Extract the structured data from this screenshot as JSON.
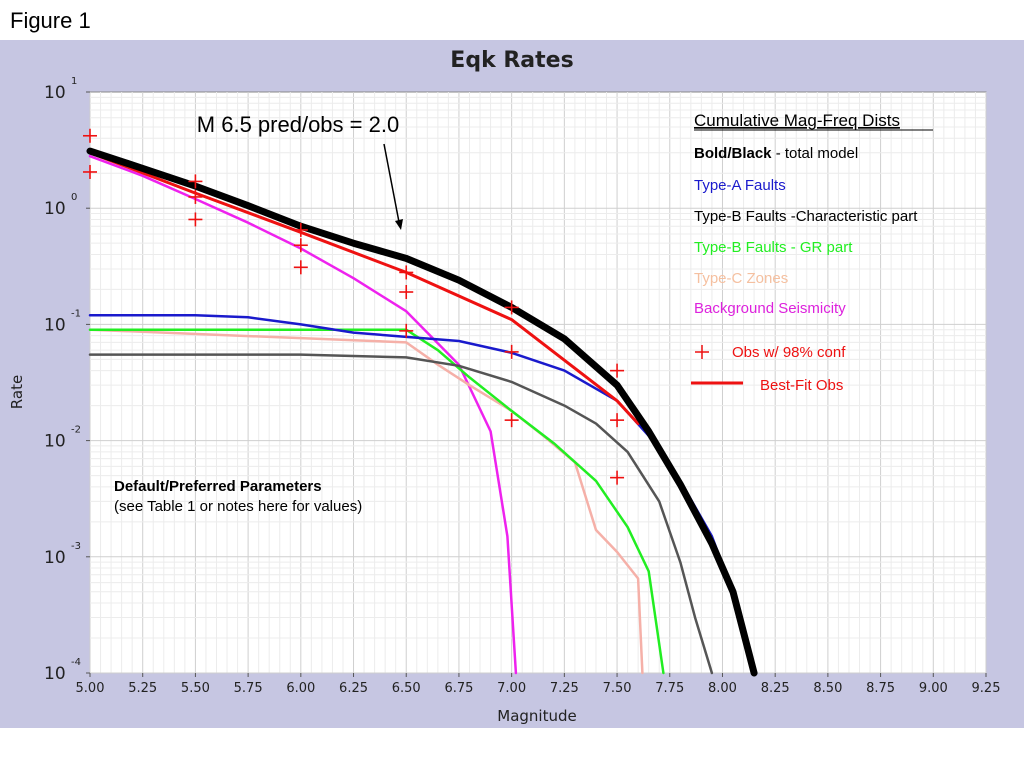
{
  "figure_label": "Figure 1",
  "chart_data": {
    "type": "line",
    "title": "Eqk Rates",
    "xlabel": "Magnitude",
    "ylabel": "Rate",
    "xscale": "linear",
    "yscale": "log",
    "xlim": [
      5.0,
      9.25
    ],
    "ylim": [
      0.0001,
      10
    ],
    "grid": true,
    "x_ticks": [
      "5.00",
      "5.25",
      "5.50",
      "5.75",
      "6.00",
      "6.25",
      "6.50",
      "6.75",
      "7.00",
      "7.25",
      "7.50",
      "7.75",
      "8.00",
      "8.25",
      "8.50",
      "8.75",
      "9.00",
      "9.25"
    ],
    "y_ticks": [
      {
        "value": 10,
        "base": "10",
        "exp": "1"
      },
      {
        "value": 1,
        "base": "10",
        "exp": "0"
      },
      {
        "value": 0.1,
        "base": "10",
        "exp": "-1"
      },
      {
        "value": 0.01,
        "base": "10",
        "exp": "-2"
      },
      {
        "value": 0.001,
        "base": "10",
        "exp": "-3"
      },
      {
        "value": 0.0001,
        "base": "10",
        "exp": "-4"
      }
    ],
    "series": [
      {
        "key": "background",
        "color": "#ee22ee",
        "width": 2.5,
        "points": [
          [
            5.0,
            2.8
          ],
          [
            5.25,
            1.9
          ],
          [
            5.5,
            1.2
          ],
          [
            5.75,
            0.75
          ],
          [
            6.0,
            0.45
          ],
          [
            6.25,
            0.25
          ],
          [
            6.5,
            0.13
          ],
          [
            6.6,
            0.085
          ],
          [
            6.75,
            0.045
          ],
          [
            6.9,
            0.012
          ],
          [
            6.98,
            0.0015
          ],
          [
            7.02,
            0.0001
          ]
        ]
      },
      {
        "key": "type_c",
        "color": "#f5b0a8",
        "width": 2.5,
        "points": [
          [
            5.0,
            0.09
          ],
          [
            6.5,
            0.07
          ],
          [
            6.65,
            0.045
          ],
          [
            6.8,
            0.03
          ],
          [
            7.0,
            0.018
          ],
          [
            7.15,
            0.011
          ],
          [
            7.3,
            0.0065
          ],
          [
            7.4,
            0.0017
          ],
          [
            7.5,
            0.0011
          ],
          [
            7.6,
            0.00065
          ],
          [
            7.62,
            0.0001
          ]
        ]
      },
      {
        "key": "type_b_gr",
        "color": "#22ee22",
        "width": 2.5,
        "points": [
          [
            5.0,
            0.09
          ],
          [
            6.5,
            0.09
          ],
          [
            6.65,
            0.06
          ],
          [
            6.8,
            0.035
          ],
          [
            7.0,
            0.018
          ],
          [
            7.2,
            0.0095
          ],
          [
            7.4,
            0.0045
          ],
          [
            7.55,
            0.0018
          ],
          [
            7.65,
            0.00075
          ],
          [
            7.72,
            0.0001
          ]
        ]
      },
      {
        "key": "type_b_char",
        "color": "#555555",
        "width": 2.5,
        "points": [
          [
            5.0,
            0.055
          ],
          [
            5.5,
            0.055
          ],
          [
            6.0,
            0.055
          ],
          [
            6.5,
            0.052
          ],
          [
            6.75,
            0.044
          ],
          [
            7.0,
            0.032
          ],
          [
            7.25,
            0.02
          ],
          [
            7.4,
            0.014
          ],
          [
            7.55,
            0.008
          ],
          [
            7.7,
            0.003
          ],
          [
            7.8,
            0.0009
          ],
          [
            7.87,
            0.0003
          ],
          [
            7.95,
            0.0001
          ]
        ]
      },
      {
        "key": "type_a",
        "color": "#1a1acc",
        "width": 2.5,
        "points": [
          [
            5.0,
            0.12
          ],
          [
            5.5,
            0.12
          ],
          [
            5.75,
            0.115
          ],
          [
            6.0,
            0.1
          ],
          [
            6.25,
            0.085
          ],
          [
            6.5,
            0.078
          ],
          [
            6.75,
            0.072
          ],
          [
            7.0,
            0.057
          ],
          [
            7.25,
            0.04
          ],
          [
            7.5,
            0.022
          ],
          [
            7.65,
            0.011
          ],
          [
            7.8,
            0.0045
          ],
          [
            7.95,
            0.0015
          ],
          [
            8.05,
            0.0005
          ],
          [
            8.15,
            0.0001
          ]
        ]
      },
      {
        "key": "best_fit",
        "color": "#ee1111",
        "width": 3,
        "points": [
          [
            5.0,
            3.0
          ],
          [
            5.5,
            1.35
          ],
          [
            6.0,
            0.62
          ],
          [
            6.5,
            0.28
          ],
          [
            7.0,
            0.11
          ],
          [
            7.5,
            0.022
          ],
          [
            7.6,
            0.014
          ]
        ]
      },
      {
        "key": "total",
        "color": "#000000",
        "width": 7,
        "points": [
          [
            5.0,
            3.1
          ],
          [
            5.25,
            2.2
          ],
          [
            5.5,
            1.55
          ],
          [
            5.75,
            1.05
          ],
          [
            6.0,
            0.7
          ],
          [
            6.25,
            0.5
          ],
          [
            6.5,
            0.37
          ],
          [
            6.75,
            0.24
          ],
          [
            7.0,
            0.14
          ],
          [
            7.25,
            0.075
          ],
          [
            7.5,
            0.03
          ],
          [
            7.65,
            0.012
          ],
          [
            7.8,
            0.0042
          ],
          [
            7.95,
            0.0013
          ],
          [
            8.05,
            0.0005
          ],
          [
            8.15,
            0.0001
          ]
        ]
      }
    ],
    "observations": [
      {
        "x": 5.0,
        "y": 4.2
      },
      {
        "x": 5.0,
        "y": 2.05
      },
      {
        "x": 5.5,
        "y": 1.7
      },
      {
        "x": 5.5,
        "y": 1.25
      },
      {
        "x": 5.5,
        "y": 0.8
      },
      {
        "x": 6.0,
        "y": 0.65
      },
      {
        "x": 6.0,
        "y": 0.48
      },
      {
        "x": 6.0,
        "y": 0.31
      },
      {
        "x": 6.5,
        "y": 0.28
      },
      {
        "x": 6.5,
        "y": 0.19
      },
      {
        "x": 6.5,
        "y": 0.088
      },
      {
        "x": 7.0,
        "y": 0.14
      },
      {
        "x": 7.0,
        "y": 0.058
      },
      {
        "x": 7.0,
        "y": 0.015
      },
      {
        "x": 7.5,
        "y": 0.04
      },
      {
        "x": 7.5,
        "y": 0.015
      },
      {
        "x": 7.5,
        "y": 0.0048
      }
    ],
    "annotation": {
      "text": "M 6.5 pred/obs = 2.0",
      "x": 6.5,
      "y": 0.37
    },
    "params_note": {
      "title": "Default/Preferred Parameters",
      "subtitle": "(see Table 1 or notes here for values)"
    },
    "legend": {
      "placement": "top-right",
      "heading": "Cumulative Mag-Freq Dists",
      "total_bold": "Bold/Black",
      "total_rest": " - total model",
      "type_a": "Type-A Faults",
      "type_b_char": "Type-B Faults -Characteristic part",
      "type_b_gr": "Type-B Faults - GR part",
      "type_c": "Type-C Zones",
      "background": "Background Seismicity",
      "obs": "Obs w/ 98% conf",
      "best_fit": "Best-Fit Obs"
    },
    "colors": {
      "heading": "#000000",
      "total": "#000000",
      "type_a": "#1a1acc",
      "type_b_char": "#000000",
      "type_b_gr": "#22ee22",
      "type_c": "#f5c0a0",
      "background": "#dd22dd",
      "obs": "#ee1111",
      "best_fit": "#ee1111"
    }
  }
}
